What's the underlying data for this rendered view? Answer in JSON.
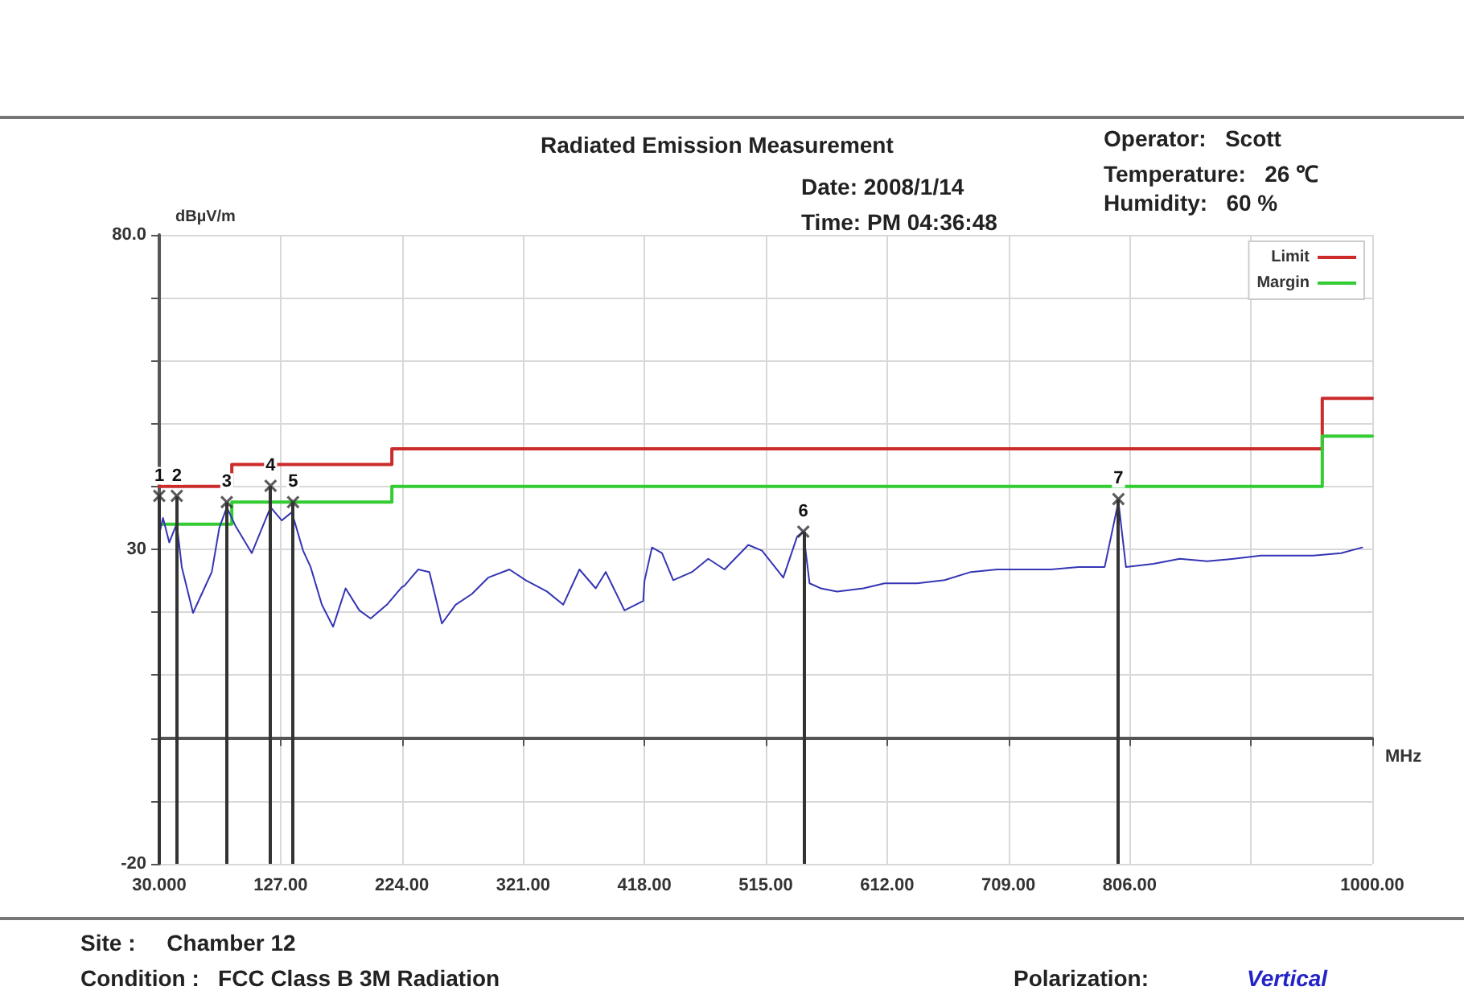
{
  "chart_data": {
    "type": "line",
    "title": "Radiated Emission Measurement",
    "ylabel": "dBµV/m",
    "xlabel": "MHz",
    "annotations": [
      {
        "text": "1",
        "x": 30,
        "y": 38.5
      },
      {
        "text": "2",
        "x": 44,
        "y": 38.5
      },
      {
        "text": "3",
        "x": 84,
        "y": 37.5
      },
      {
        "text": "4",
        "x": 119,
        "y": 40.1
      },
      {
        "text": "5",
        "x": 137,
        "y": 37.5
      },
      {
        "text": "6",
        "x": 545,
        "y": 32.8
      },
      {
        "text": "7",
        "x": 797,
        "y": 38.0
      },
      "Date: 2008/1/14",
      "Time: PM 04:36:48",
      "Operator:   Scott",
      "Temperature:   26 ℃",
      "Humidity:   60 %",
      "Site :     Chamber 12",
      "Condition :   FCC Class B 3M Radiation",
      "Polarization:",
      "Vertical"
    ],
    "xlim": [
      30,
      1000
    ],
    "xticks": [
      {
        "value": 30,
        "label": "30.000"
      },
      {
        "value": 127,
        "label": "127.00"
      },
      {
        "value": 224,
        "label": "224.00"
      },
      {
        "value": 321,
        "label": "321.00"
      },
      {
        "value": 418,
        "label": "418.00"
      },
      {
        "value": 515,
        "label": "515.00"
      },
      {
        "value": 612,
        "label": "612.00"
      },
      {
        "value": 709,
        "label": "709.00"
      },
      {
        "value": 806,
        "label": "806.00"
      },
      {
        "value": 903,
        "label": null
      },
      {
        "value": 1000,
        "label": "1000.00"
      }
    ],
    "ylim": [
      -20,
      80
    ],
    "yticks": [
      -20,
      {
        "value": -10,
        "label": null
      },
      {
        "value": 0,
        "label": null
      },
      {
        "value": 10,
        "label": null
      },
      {
        "value": 20,
        "label": null
      },
      30,
      {
        "value": 40,
        "label": null
      },
      {
        "value": 50,
        "label": null
      },
      {
        "value": 60,
        "label": null
      },
      {
        "value": 70,
        "label": null
      },
      {
        "value": 80,
        "label": "80.0"
      }
    ],
    "grid": true,
    "legend": "top right",
    "series": [
      {
        "name": "Limit",
        "type": "step",
        "color": "#cc2b2b",
        "x": [
          30,
          88,
          216,
          960,
          1000
        ],
        "values": [
          40,
          43.5,
          46,
          54,
          54
        ]
      },
      {
        "name": "Margin",
        "type": "step",
        "color": "#33cc33",
        "x": [
          30,
          88,
          216,
          960,
          1000
        ],
        "values": [
          34,
          37.5,
          40,
          48,
          48
        ]
      },
      {
        "type": "line",
        "color": "#3535b5",
        "marker": "none",
        "x": [
          30,
          33,
          38,
          44,
          48,
          57,
          66,
          72,
          78,
          84,
          91,
          104,
          119,
          128,
          136,
          145,
          151,
          160,
          169,
          179,
          190,
          199,
          212,
          224,
          226,
          237,
          246,
          256,
          267,
          280,
          293,
          310,
          323,
          340,
          353,
          366,
          379,
          387,
          402,
          417,
          418,
          424,
          432,
          441,
          456,
          469,
          482,
          501,
          512,
          529,
          540,
          545,
          550,
          559,
          572,
          593,
          610,
          636,
          658,
          679,
          700,
          722,
          743,
          765,
          786,
          797,
          803,
          825,
          846,
          868,
          889,
          911,
          932,
          953,
          975,
          992
        ],
        "values": [
          32.4,
          35.0,
          31.1,
          34.1,
          27.2,
          19.9,
          23.8,
          26.4,
          33.4,
          36.7,
          33.7,
          29.4,
          36.7,
          34.6,
          35.9,
          29.8,
          27.2,
          21.2,
          17.7,
          23.8,
          20.3,
          19.0,
          21.2,
          24.0,
          24.2,
          26.8,
          26.4,
          18.2,
          21.2,
          22.9,
          25.5,
          26.8,
          25.1,
          23.3,
          21.2,
          26.8,
          23.8,
          26.4,
          20.3,
          21.8,
          25.0,
          30.3,
          29.4,
          25.1,
          26.4,
          28.5,
          26.8,
          30.7,
          29.8,
          25.5,
          32.0,
          32.8,
          24.6,
          23.8,
          23.3,
          23.8,
          24.6,
          24.6,
          25.1,
          26.4,
          26.8,
          26.8,
          26.8,
          27.2,
          27.2,
          37.6,
          27.2,
          27.7,
          28.5,
          28.1,
          28.5,
          29.0,
          29.0,
          29.0,
          29.4,
          30.3
        ]
      },
      {
        "type": "lollipop",
        "color": "#333333",
        "marker": "cross",
        "x": [
          30,
          44,
          84,
          119,
          137,
          545,
          797
        ],
        "values": [
          38.5,
          38.5,
          37.5,
          40.1,
          37.5,
          32.8,
          38.0
        ]
      }
    ]
  }
}
